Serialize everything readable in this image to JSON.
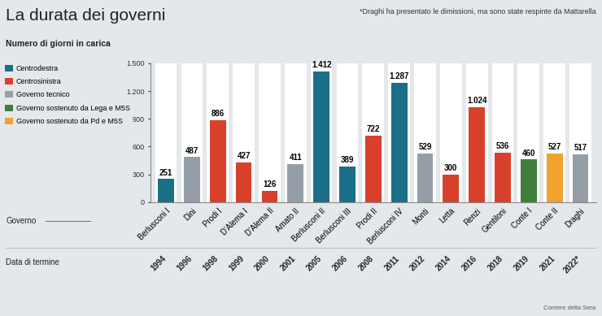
{
  "chart_data": {
    "type": "bar",
    "title": "La durata dei governi",
    "subtitle": "Numero di giorni in carica",
    "note": "*Draghi ha presentato le dimissioni, ma sono state respinte da Mattarella",
    "source": "Corriere della Sera",
    "category_label": "Governo",
    "date_label": "Data di termine",
    "categories": [
      "Berlusconi I",
      "Dini",
      "Prodi I",
      "D'Alema I",
      "D'Alema II",
      "Amato II",
      "Berlusconi II",
      "Berlusconi III",
      "Prodi II",
      "Berlusconi IV",
      "Monti",
      "Letta",
      "Renzi",
      "Gentiloni",
      "Conte I",
      "Conte II",
      "Draghi"
    ],
    "end_dates": [
      "1994",
      "1996",
      "1998",
      "1999",
      "2000",
      "2001",
      "2005",
      "2006",
      "2008",
      "2011",
      "2012",
      "2014",
      "2016",
      "2018",
      "2019",
      "2021",
      "2022*"
    ],
    "values": [
      251,
      487,
      886,
      427,
      126,
      411,
      1412,
      389,
      722,
      1287,
      529,
      300,
      1024,
      536,
      460,
      527,
      517
    ],
    "value_labels": [
      "251",
      "487",
      "886",
      "427",
      "126",
      "411",
      "1.412",
      "389",
      "722",
      "1.287",
      "529",
      "300",
      "1.024",
      "536",
      "460",
      "527",
      "517"
    ],
    "colors": [
      "#1b6e87",
      "#959ea6",
      "#d8402c",
      "#d8402c",
      "#d8402c",
      "#959ea6",
      "#1b6e87",
      "#1b6e87",
      "#d8402c",
      "#1b6e87",
      "#959ea6",
      "#d8402c",
      "#d8402c",
      "#d8402c",
      "#3f7f3b",
      "#f0a22e",
      "#959ea6"
    ],
    "groups": [
      {
        "name": "Centrodestra",
        "color": "#1b6e87"
      },
      {
        "name": "Centrosinistra",
        "color": "#d8402c"
      },
      {
        "name": "Governo tecnico",
        "color": "#959ea6"
      },
      {
        "name": "Governo sostenuto da Lega e M5S",
        "color": "#3f7f3b"
      },
      {
        "name": "Governo sostenuto da Pd e M5S",
        "color": "#f0a22e"
      }
    ],
    "legend": "upper left",
    "ylim": [
      0,
      1500
    ],
    "yticks": [
      0,
      300,
      600,
      900,
      {
        "value": 1200,
        "label": "1.200"
      },
      {
        "value": 1500,
        "label": "1.500"
      }
    ],
    "grid": false,
    "data_labels": true
  }
}
